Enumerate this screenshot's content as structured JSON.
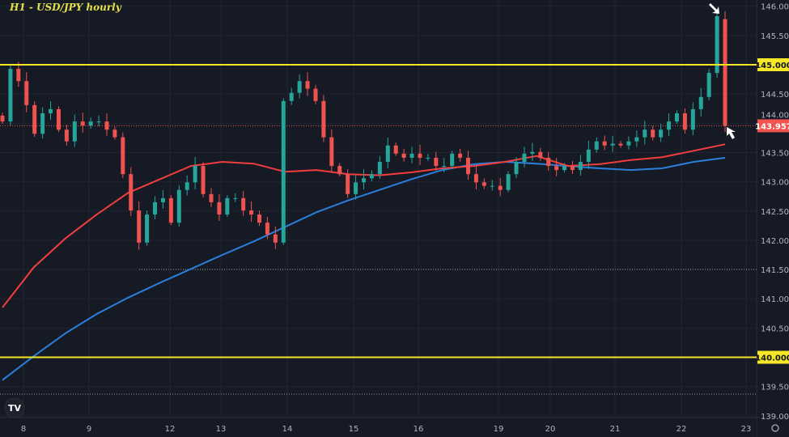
{
  "title": "H1 - USD/JPY hourly",
  "chart_data": {
    "type": "candlestick",
    "title": "H1 - USD/JPY hourly",
    "ylim": [
      139.0,
      146.0
    ],
    "y_ticks": [
      "146.000",
      "145.500",
      "145.000",
      "144.500",
      "144.000",
      "143.500",
      "143.000",
      "142.500",
      "142.000",
      "141.500",
      "141.000",
      "140.500",
      "140.000",
      "139.500",
      "139.000"
    ],
    "x_ticks": [
      "8",
      "9",
      "12",
      "13",
      "14",
      "15",
      "16",
      "19",
      "20",
      "21",
      "22",
      "23"
    ],
    "grid": true,
    "closes": [
      144.03,
      144.93,
      144.72,
      144.31,
      143.82,
      144.17,
      144.24,
      143.89,
      143.69,
      144.03,
      143.96,
      144.03,
      144.03,
      143.89,
      143.76,
      143.13,
      142.51,
      141.96,
      142.44,
      142.65,
      142.72,
      142.3,
      142.86,
      142.99,
      143.27,
      142.79,
      142.65,
      142.44,
      142.72,
      142.72,
      142.51,
      142.44,
      142.3,
      142.1,
      141.96,
      144.38,
      144.52,
      144.72,
      144.59,
      144.38,
      143.76,
      143.27,
      143.13,
      142.79,
      142.99,
      143.06,
      143.13,
      143.34,
      143.62,
      143.48,
      143.41,
      143.48,
      143.41,
      143.41,
      143.27,
      143.27,
      143.48,
      143.41,
      143.13,
      142.99,
      142.93,
      142.93,
      142.86,
      143.13,
      143.34,
      143.48,
      143.51,
      143.41,
      143.27,
      143.2,
      143.27,
      143.2,
      143.34,
      143.55,
      143.69,
      143.62,
      143.65,
      143.62,
      143.69,
      143.76,
      143.89,
      143.76,
      143.89,
      144.03,
      144.17,
      143.89,
      144.24,
      144.45,
      144.86,
      145.83,
      143.957
    ],
    "ma_red": [
      140.85,
      141.54,
      142.03,
      142.44,
      142.81,
      143.04,
      143.27,
      143.34,
      143.31,
      143.17,
      143.2,
      143.13,
      143.11,
      143.16,
      143.23,
      143.27,
      143.34,
      143.44,
      143.27,
      143.3,
      143.37,
      143.42,
      143.53,
      143.64
    ],
    "ma_blue": [
      139.61,
      140.02,
      140.41,
      140.74,
      141.02,
      141.27,
      141.51,
      141.75,
      141.98,
      142.23,
      142.48,
      142.68,
      142.86,
      143.04,
      143.2,
      143.3,
      143.34,
      143.31,
      143.27,
      143.23,
      143.2,
      143.23,
      143.34,
      143.41
    ],
    "horizontal_lines": [
      {
        "price": 145.0,
        "label": "145.000",
        "color": "#f5e727",
        "style": "solid"
      },
      {
        "price": 140.0,
        "label": "140.000",
        "color": "#f5e727",
        "style": "solid"
      }
    ],
    "dotted_lines": [
      141.5,
      139.37
    ],
    "last_price": {
      "value": 143.957,
      "label": "143.957",
      "color": "#f05350"
    },
    "colors": {
      "up": "#26a69a",
      "down": "#ef5350",
      "ma_red": "#f23d3d",
      "ma_blue": "#2a7fdc",
      "background": "#161a25",
      "grid": "#212533",
      "level": "#f5e727"
    },
    "annotations": [
      "arrow-at-high",
      "arrow-at-last-price"
    ]
  }
}
